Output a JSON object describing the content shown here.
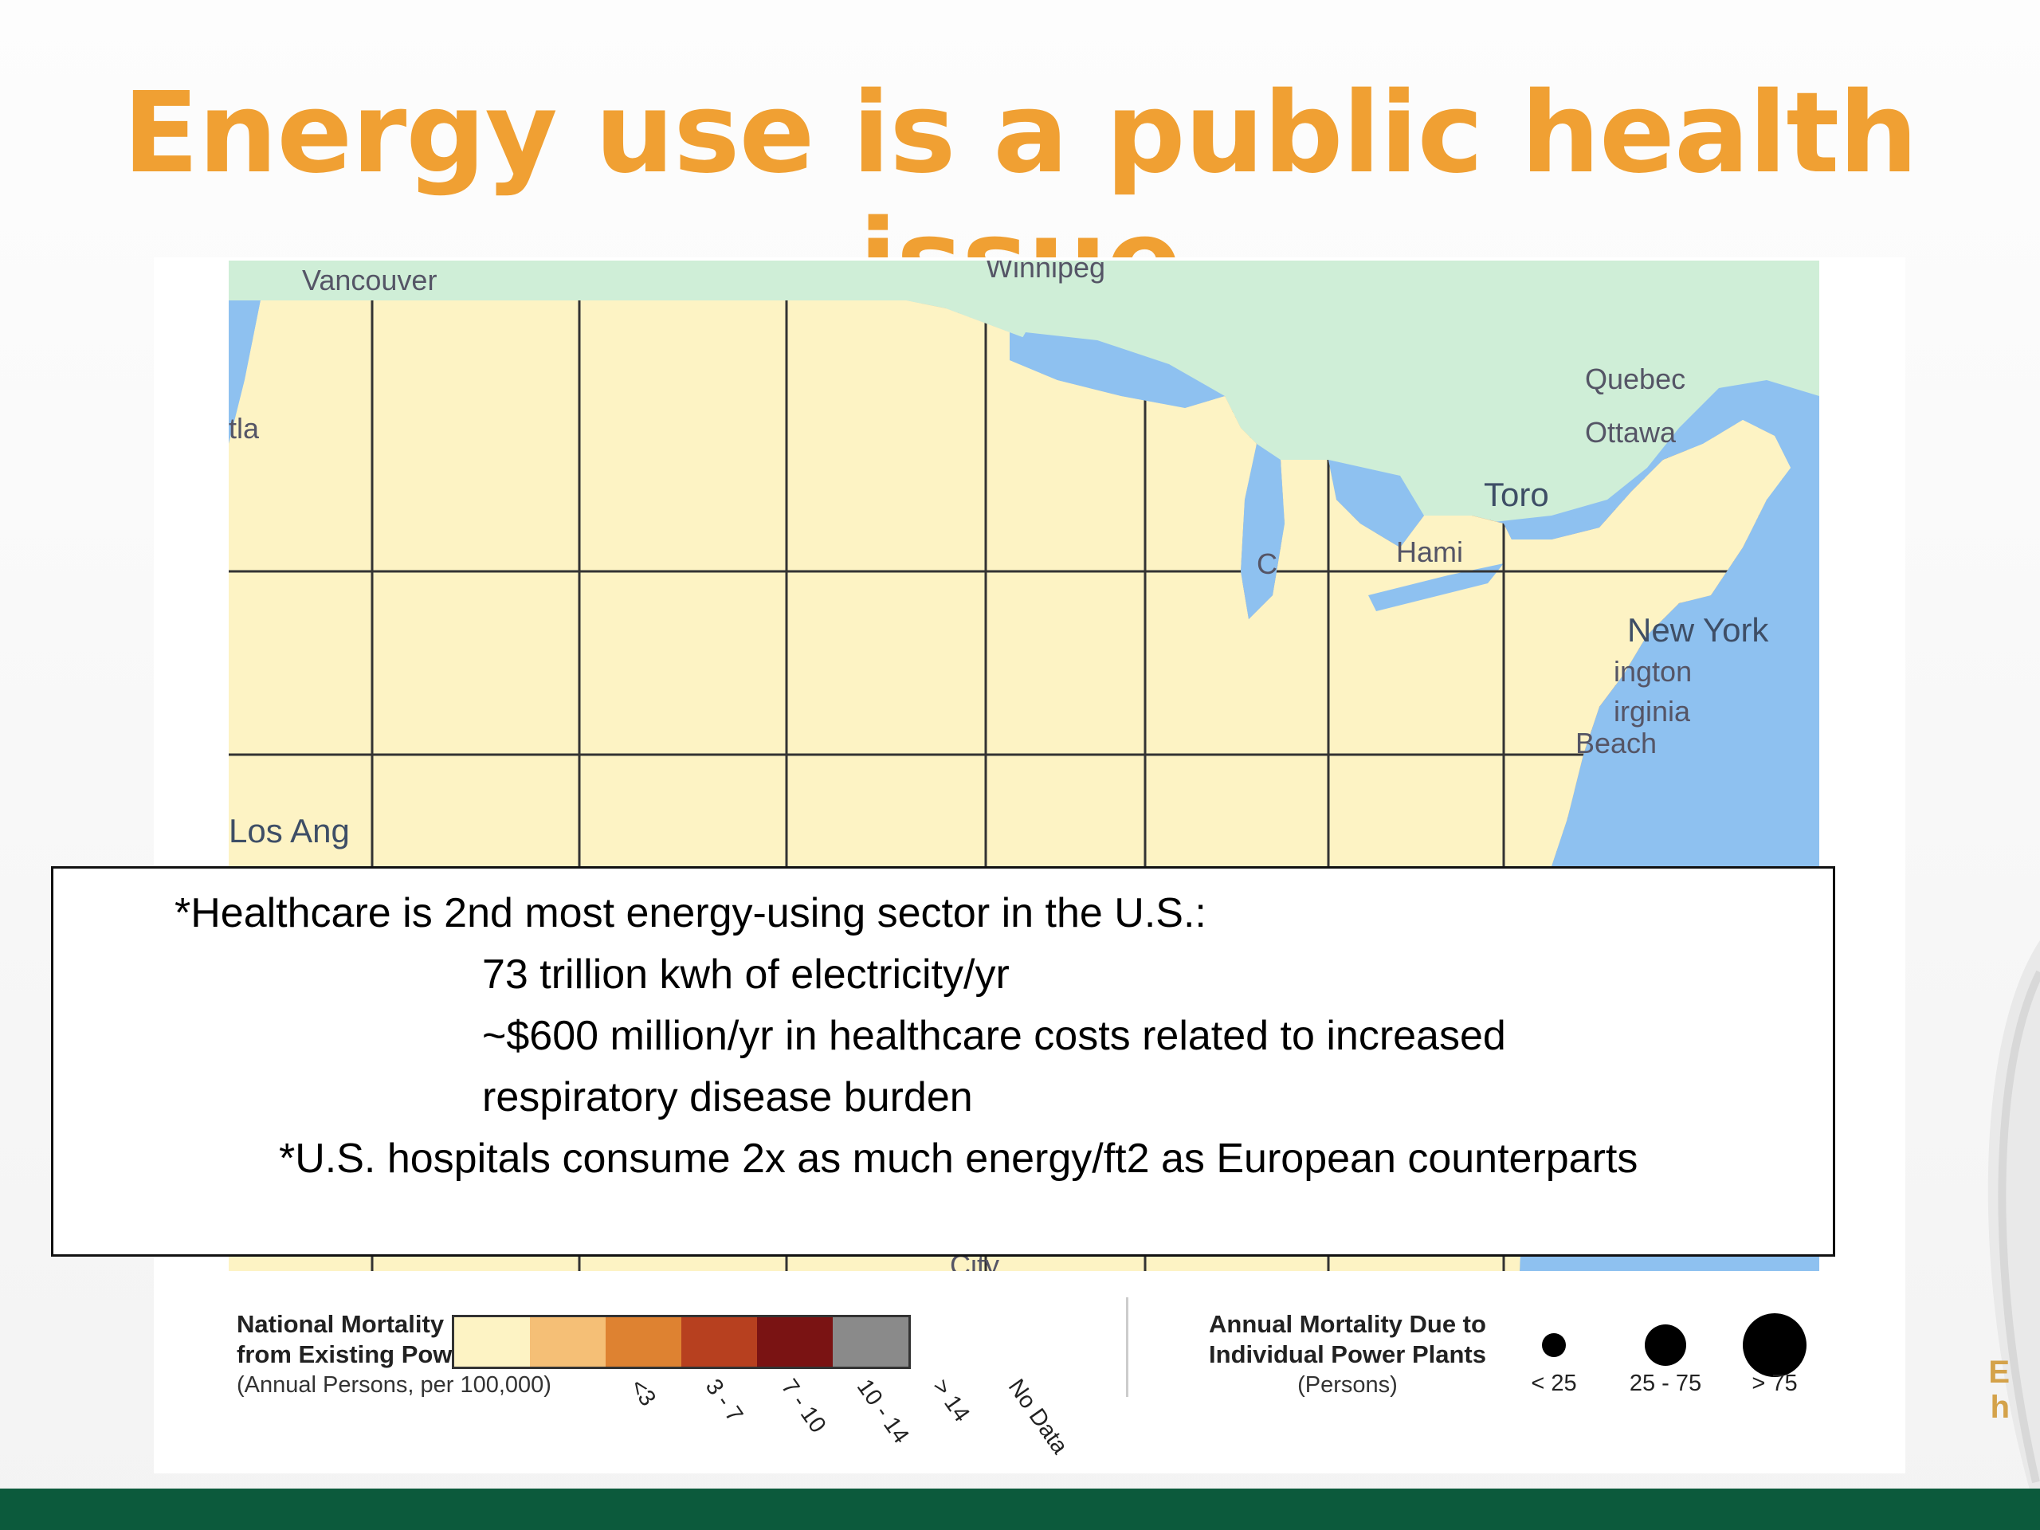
{
  "slide": {
    "title": "Energy use is a public health issue",
    "accent_color": "#f0a033",
    "footer_bar_color": "#0c5a3c",
    "logo_fragment": [
      "E",
      "h"
    ]
  },
  "map": {
    "place_labels": {
      "vancouver": "Vancouver",
      "winnipeg": "Winnipeg",
      "quebec": "Quebec",
      "ottawa": "Ottawa",
      "toronto": "Toro",
      "hamilton": "Hami",
      "new_york": "New York",
      "washington": "ington",
      "virginia_beach_1": "irginia",
      "virginia_beach_2": "Beach",
      "los_angeles": "Los Ang",
      "portland": "tla",
      "chicago": "C",
      "city": "City"
    },
    "colors": {
      "water": "#8ec1f0",
      "canada_land": "#cfeed7",
      "no_data": "#8a8a8a"
    }
  },
  "text_box": {
    "line1": "*Healthcare is 2nd most energy-using sector in the U.S.:",
    "line2": "73 trillion kwh of electricity/yr",
    "line3": "~$600 million/yr in healthcare costs related to increased",
    "line4": "respiratory disease burden",
    "line5": "*U.S. hospitals consume 2x as much energy/ft2 as European counterparts"
  },
  "legend": {
    "mortality_title_1": "National Mortality Effects",
    "mortality_title_2": "from Existing Powerplants",
    "mortality_units": "(Annual Persons, per 100,000)",
    "classes": [
      {
        "label": "<3",
        "color": "#fdf3c4"
      },
      {
        "label": "3 - 7",
        "color": "#f5bf76"
      },
      {
        "label": "7 - 10",
        "color": "#de8231"
      },
      {
        "label": "10 - 14",
        "color": "#b7401f"
      },
      {
        "label": "> 14",
        "color": "#7a1313"
      },
      {
        "label": "No Data",
        "color": "#8a8a8a"
      }
    ],
    "plants_title_1": "Annual Mortality Due to",
    "plants_title_2": "Individual Power Plants",
    "plants_units": "(Persons)",
    "plant_sizes": [
      {
        "label": "< 25"
      },
      {
        "label": "25 - 75"
      },
      {
        "label": "> 75"
      }
    ]
  }
}
